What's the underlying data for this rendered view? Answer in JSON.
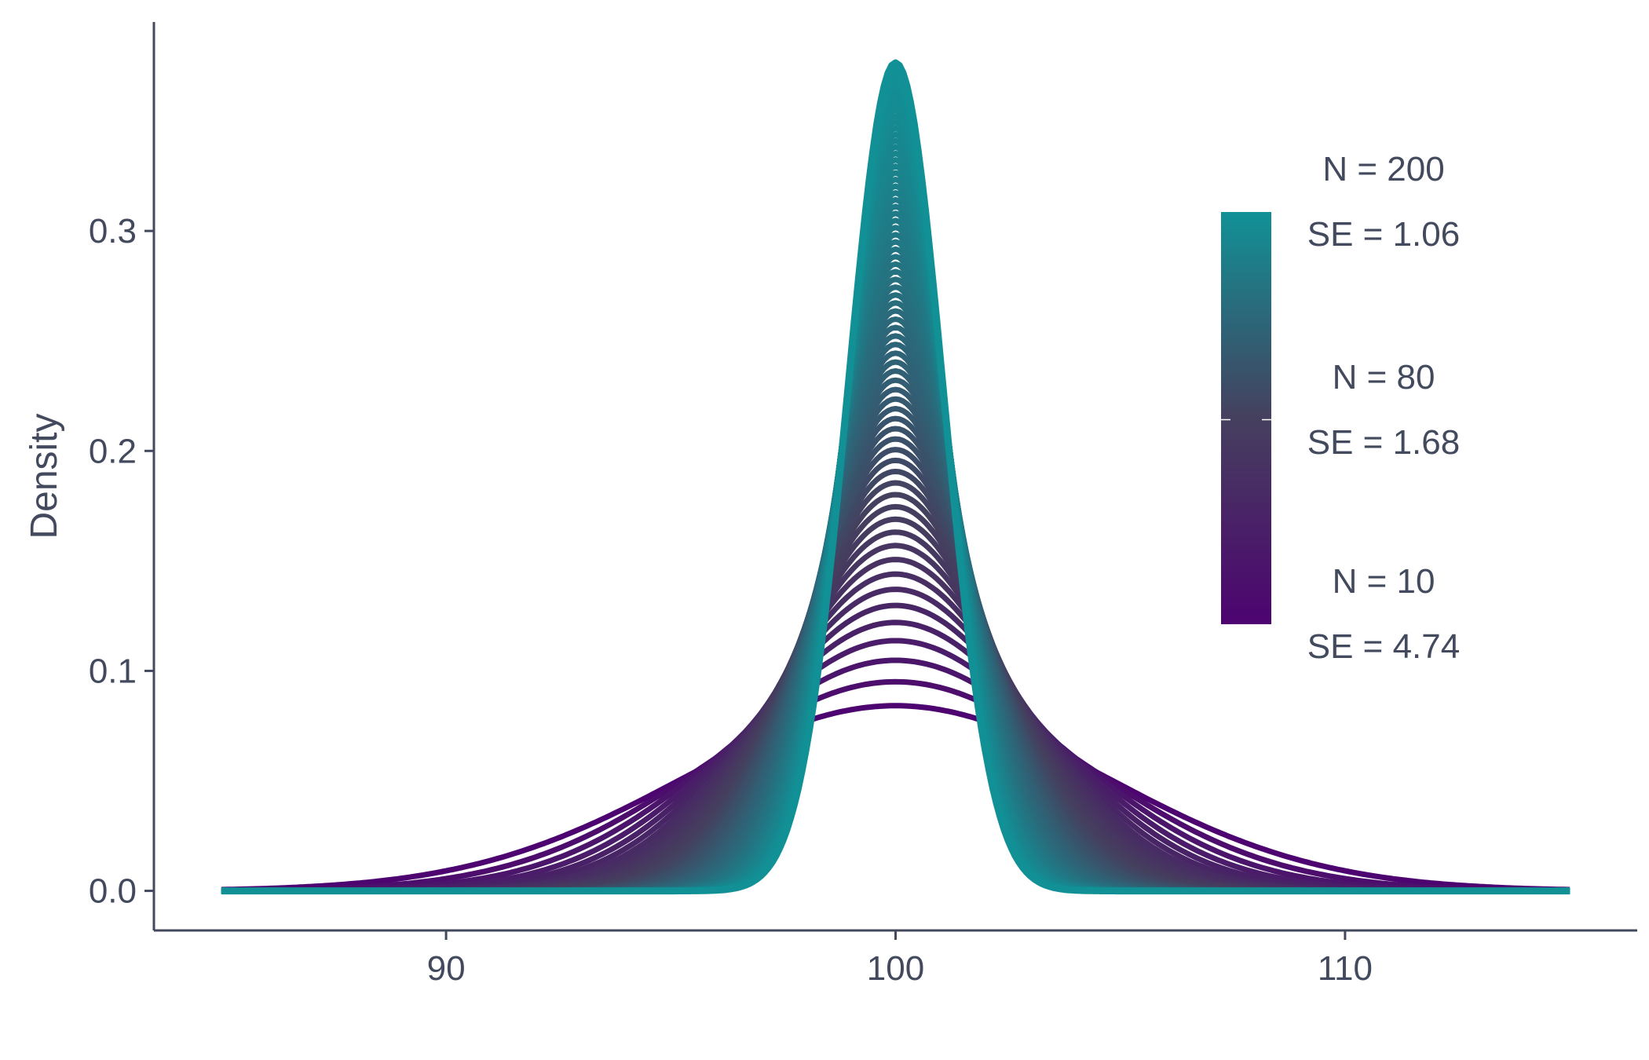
{
  "chart_data": {
    "type": "area",
    "title": "",
    "xlabel": "",
    "ylabel": "Density",
    "xlim": [
      83.5,
      116.5
    ],
    "ylim": [
      -0.018,
      0.395
    ],
    "x_ticks": [
      90,
      100,
      110
    ],
    "x_tick_labels": [
      "90",
      "100",
      "110"
    ],
    "y_ticks": [
      0.0,
      0.1,
      0.2,
      0.3
    ],
    "y_tick_labels": [
      "0.0",
      "0.1",
      "0.2",
      "0.3"
    ],
    "grid": false,
    "legend_placement": "right",
    "curve": {
      "distribution": "normal",
      "mean": 100,
      "x_range": [
        85,
        115
      ]
    },
    "series": [
      {
        "N": 10,
        "SE": 4.74
      },
      {
        "N": 80,
        "SE": 1.68
      },
      {
        "N": 200,
        "SE": 1.06
      }
    ],
    "colorbar": {
      "entries": [
        {
          "n_text": "N = 200",
          "se_text": "SE = 1.06"
        },
        {
          "n_text": "N = 80",
          "se_text": "SE = 1.68"
        },
        {
          "n_text": "N = 10",
          "se_text": "SE = 4.74"
        }
      ],
      "color_low": "#4D0370",
      "color_mid": "#45405E",
      "color_high": "#119196"
    },
    "colors": {
      "axis": "#434A5E",
      "text": "#434A5E",
      "background": "#FFFFFF"
    }
  }
}
